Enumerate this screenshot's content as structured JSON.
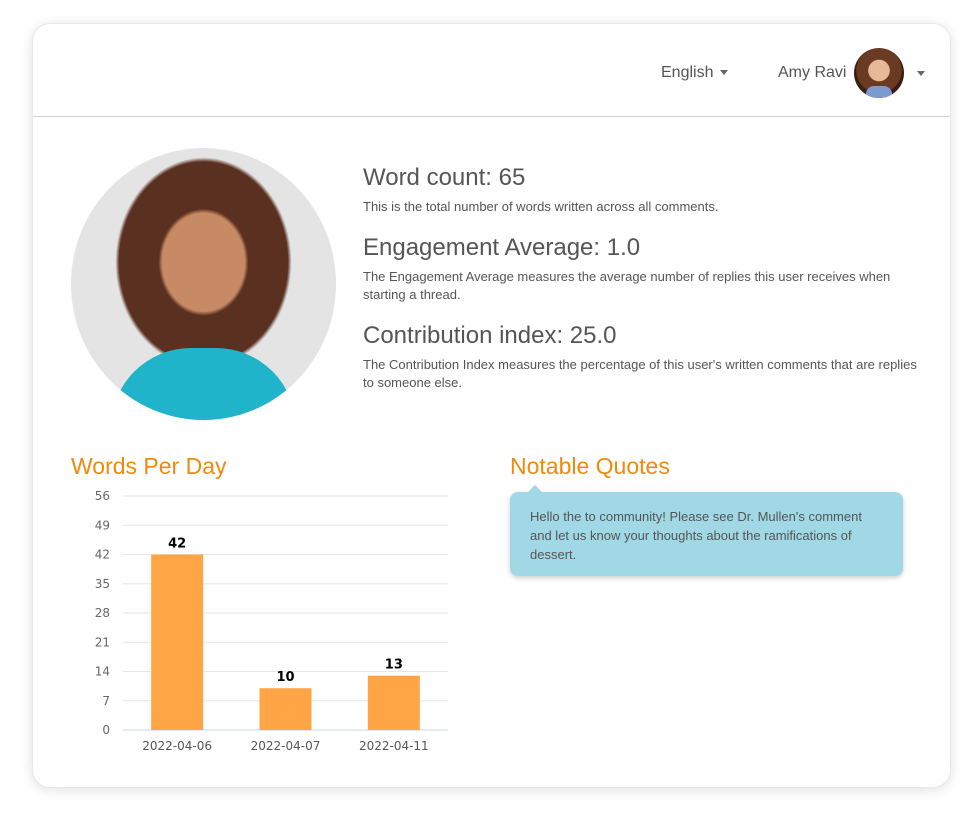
{
  "header": {
    "language": "English",
    "user_name": "Amy Ravi"
  },
  "stats": [
    {
      "title": "Word count: 65",
      "desc": "This is the total number of words written across all comments."
    },
    {
      "title": "Engagement Average: 1.0",
      "desc": "The Engagement Average measures the average number of replies this user receives when starting a thread."
    },
    {
      "title": "Contribution index: 25.0",
      "desc": "The Contribution Index measures the percentage of this user's written comments that are replies to someone else."
    }
  ],
  "words_per_day": {
    "title": "Words Per Day"
  },
  "quotes": {
    "title": "Notable Quotes",
    "items": [
      "Hello the to community! Please see Dr. Mullen's comment and let us know your thoughts about the ramifications of dessert."
    ]
  },
  "chart_data": {
    "type": "bar",
    "title": "Words Per Day",
    "categories": [
      "2022-04-06",
      "2022-04-07",
      "2022-04-11"
    ],
    "values": [
      42,
      10,
      13
    ],
    "ylim": [
      0,
      56
    ],
    "yticks": [
      0,
      7,
      14,
      21,
      28,
      35,
      42,
      49,
      56
    ],
    "grid": true,
    "color": "#ffa546",
    "data_labels": true
  }
}
